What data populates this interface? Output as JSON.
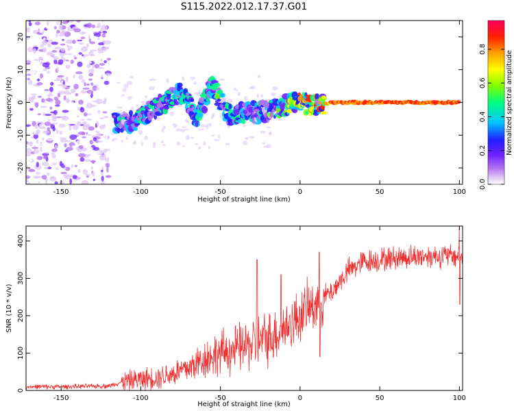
{
  "figure": {
    "title": "S115.2022.012.17.37.G01"
  },
  "colors": {
    "snr_line": "#f03030",
    "axis": "#000000",
    "colormap": [
      "#ffffff",
      "#e0c8f5",
      "#b070f0",
      "#7020ff",
      "#2020ff",
      "#00c8ff",
      "#00ff80",
      "#80ff00",
      "#ffff00",
      "#ffa000",
      "#ff2000",
      "#ff0060"
    ]
  },
  "chart_data": [
    {
      "type": "heatmap",
      "title": "",
      "xlabel": "Height of straight line (km)",
      "ylabel": "Frequency (Hz)",
      "xlim": [
        -172,
        102
      ],
      "ylim": [
        -25,
        25
      ],
      "xticks": [
        -150,
        -100,
        -50,
        0,
        50,
        100
      ],
      "yticks": [
        -20,
        -10,
        0,
        10,
        20
      ],
      "colorbar": {
        "label": "Normalized spectral amplitude",
        "range": [
          0,
          0.97
        ],
        "ticks": [
          0.0,
          0.2,
          0.4,
          0.6,
          0.8
        ]
      },
      "features": {
        "noise_region_x": [
          -172,
          -120
        ],
        "ridge": [
          {
            "x": -116,
            "y": -6,
            "amp": 0.45
          },
          {
            "x": -105,
            "y": -6,
            "amp": 0.5
          },
          {
            "x": -95,
            "y": -3,
            "amp": 0.5
          },
          {
            "x": -85,
            "y": 0,
            "amp": 0.5
          },
          {
            "x": -75,
            "y": 3,
            "amp": 0.55
          },
          {
            "x": -65,
            "y": -4,
            "amp": 0.5
          },
          {
            "x": -55,
            "y": 5,
            "amp": 0.55
          },
          {
            "x": -45,
            "y": -4,
            "amp": 0.5
          },
          {
            "x": -35,
            "y": -3,
            "amp": 0.45
          },
          {
            "x": -22,
            "y": -3,
            "amp": 0.5
          },
          {
            "x": -10,
            "y": -1,
            "amp": 0.6
          },
          {
            "x": 0,
            "y": 0,
            "amp": 0.8
          },
          {
            "x": 10,
            "y": -1,
            "amp": 0.8
          },
          {
            "x": 20,
            "y": 0,
            "amp": 0.9
          },
          {
            "x": 50,
            "y": 0,
            "amp": 0.95
          },
          {
            "x": 100,
            "y": 0,
            "amp": 0.95
          }
        ]
      }
    },
    {
      "type": "line",
      "title": "",
      "xlabel": "Height of straight line (km)",
      "ylabel": "SNR (10 * v/v)",
      "xlim": [
        -172,
        102
      ],
      "ylim": [
        0,
        440
      ],
      "xticks": [
        -150,
        -100,
        -50,
        0,
        50,
        100
      ],
      "yticks": [
        0,
        100,
        200,
        300,
        400
      ],
      "series": [
        {
          "x": [
            -172,
            -150,
            -120,
            -110,
            -100,
            -90,
            -80,
            -70,
            -60,
            -50,
            -40,
            -30,
            -20,
            -10,
            0,
            10,
            20,
            30,
            40,
            50,
            60,
            80,
            100,
            102
          ],
          "values": [
            10,
            10,
            12,
            25,
            30,
            35,
            45,
            60,
            85,
            100,
            110,
            125,
            140,
            165,
            200,
            235,
            265,
            320,
            345,
            350,
            355,
            360,
            360,
            360
          ]
        }
      ],
      "spikes": [
        {
          "x": -27,
          "y": 350
        },
        {
          "x": -12,
          "y": 310
        },
        {
          "x": 12,
          "y": 370
        },
        {
          "x": 12.5,
          "y": 90
        },
        {
          "x": 100,
          "y": 440
        },
        {
          "x": 100.3,
          "y": 230
        }
      ]
    }
  ]
}
